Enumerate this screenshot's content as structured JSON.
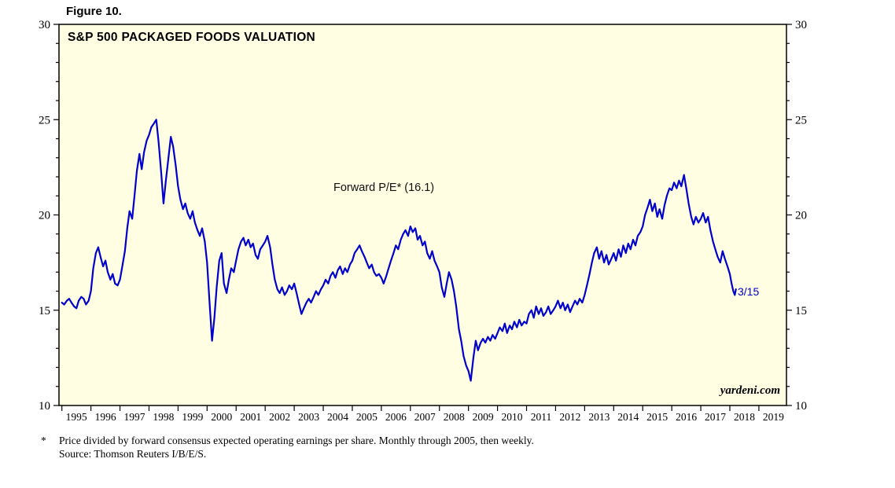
{
  "figure_label": "Figure 10.",
  "chart_data": {
    "type": "line",
    "title": "S&P 500 PACKAGED FOODS VALUATION",
    "series_label": "Forward P/E* (16.1)",
    "end_point_label": "3/15",
    "watermark": "yardeni.com",
    "xlabel": "",
    "ylabel": "",
    "ylim": [
      10,
      30
    ],
    "y_major_ticks": [
      10,
      15,
      20,
      25,
      30
    ],
    "y_minor_step": 1,
    "xlim": [
      1994.9,
      2019.95
    ],
    "x_years": [
      1995,
      1996,
      1997,
      1998,
      1999,
      2000,
      2001,
      2002,
      2003,
      2004,
      2005,
      2006,
      2007,
      2008,
      2009,
      2010,
      2011,
      2012,
      2013,
      2014,
      2015,
      2016,
      2017,
      2018,
      2019
    ],
    "line_color": "#0000CC",
    "plot_background": "#FFFDE2",
    "frame_color": "#000000",
    "legend_position": "none",
    "grid": false,
    "series": [
      {
        "name": "Forward P/E",
        "points": [
          [
            1995.0,
            15.4
          ],
          [
            1995.08,
            15.3
          ],
          [
            1995.17,
            15.5
          ],
          [
            1995.25,
            15.6
          ],
          [
            1995.33,
            15.4
          ],
          [
            1995.42,
            15.2
          ],
          [
            1995.5,
            15.1
          ],
          [
            1995.58,
            15.5
          ],
          [
            1995.67,
            15.7
          ],
          [
            1995.75,
            15.6
          ],
          [
            1995.83,
            15.3
          ],
          [
            1995.92,
            15.5
          ],
          [
            1996.0,
            16.0
          ],
          [
            1996.08,
            17.2
          ],
          [
            1996.17,
            18.0
          ],
          [
            1996.25,
            18.3
          ],
          [
            1996.33,
            17.8
          ],
          [
            1996.42,
            17.3
          ],
          [
            1996.5,
            17.6
          ],
          [
            1996.58,
            17.0
          ],
          [
            1996.67,
            16.6
          ],
          [
            1996.75,
            16.9
          ],
          [
            1996.83,
            16.4
          ],
          [
            1996.92,
            16.3
          ],
          [
            1997.0,
            16.6
          ],
          [
            1997.08,
            17.3
          ],
          [
            1997.17,
            18.1
          ],
          [
            1997.25,
            19.3
          ],
          [
            1997.33,
            20.2
          ],
          [
            1997.42,
            19.8
          ],
          [
            1997.5,
            21.0
          ],
          [
            1997.58,
            22.3
          ],
          [
            1997.67,
            23.2
          ],
          [
            1997.75,
            22.4
          ],
          [
            1997.83,
            23.3
          ],
          [
            1997.92,
            23.9
          ],
          [
            1998.0,
            24.2
          ],
          [
            1998.08,
            24.6
          ],
          [
            1998.17,
            24.8
          ],
          [
            1998.25,
            25.0
          ],
          [
            1998.33,
            23.8
          ],
          [
            1998.42,
            22.2
          ],
          [
            1998.5,
            20.6
          ],
          [
            1998.58,
            21.8
          ],
          [
            1998.67,
            23.0
          ],
          [
            1998.75,
            24.1
          ],
          [
            1998.83,
            23.6
          ],
          [
            1998.92,
            22.6
          ],
          [
            1999.0,
            21.5
          ],
          [
            1999.08,
            20.8
          ],
          [
            1999.17,
            20.3
          ],
          [
            1999.25,
            20.6
          ],
          [
            1999.33,
            20.1
          ],
          [
            1999.42,
            19.8
          ],
          [
            1999.5,
            20.2
          ],
          [
            1999.58,
            19.6
          ],
          [
            1999.67,
            19.2
          ],
          [
            1999.75,
            18.9
          ],
          [
            1999.83,
            19.3
          ],
          [
            1999.92,
            18.6
          ],
          [
            2000.0,
            17.5
          ],
          [
            2000.08,
            15.5
          ],
          [
            2000.17,
            13.4
          ],
          [
            2000.25,
            14.6
          ],
          [
            2000.33,
            16.2
          ],
          [
            2000.42,
            17.6
          ],
          [
            2000.5,
            18.0
          ],
          [
            2000.58,
            16.4
          ],
          [
            2000.67,
            15.9
          ],
          [
            2000.75,
            16.6
          ],
          [
            2000.83,
            17.2
          ],
          [
            2000.92,
            17.0
          ],
          [
            2001.0,
            17.6
          ],
          [
            2001.08,
            18.2
          ],
          [
            2001.17,
            18.6
          ],
          [
            2001.25,
            18.8
          ],
          [
            2001.33,
            18.4
          ],
          [
            2001.42,
            18.7
          ],
          [
            2001.5,
            18.3
          ],
          [
            2001.58,
            18.5
          ],
          [
            2001.67,
            17.9
          ],
          [
            2001.75,
            17.7
          ],
          [
            2001.83,
            18.2
          ],
          [
            2001.92,
            18.4
          ],
          [
            2002.0,
            18.6
          ],
          [
            2002.08,
            18.9
          ],
          [
            2002.17,
            18.3
          ],
          [
            2002.25,
            17.4
          ],
          [
            2002.33,
            16.6
          ],
          [
            2002.42,
            16.1
          ],
          [
            2002.5,
            15.9
          ],
          [
            2002.58,
            16.2
          ],
          [
            2002.67,
            15.8
          ],
          [
            2002.75,
            16.0
          ],
          [
            2002.83,
            16.3
          ],
          [
            2002.92,
            16.1
          ],
          [
            2003.0,
            16.4
          ],
          [
            2003.08,
            15.9
          ],
          [
            2003.17,
            15.3
          ],
          [
            2003.25,
            14.8
          ],
          [
            2003.33,
            15.1
          ],
          [
            2003.42,
            15.4
          ],
          [
            2003.5,
            15.6
          ],
          [
            2003.58,
            15.4
          ],
          [
            2003.67,
            15.7
          ],
          [
            2003.75,
            16.0
          ],
          [
            2003.83,
            15.8
          ],
          [
            2003.92,
            16.1
          ],
          [
            2004.0,
            16.3
          ],
          [
            2004.08,
            16.6
          ],
          [
            2004.17,
            16.4
          ],
          [
            2004.25,
            16.8
          ],
          [
            2004.33,
            17.0
          ],
          [
            2004.42,
            16.7
          ],
          [
            2004.5,
            17.1
          ],
          [
            2004.58,
            17.3
          ],
          [
            2004.67,
            16.9
          ],
          [
            2004.75,
            17.2
          ],
          [
            2004.83,
            17.0
          ],
          [
            2004.92,
            17.4
          ],
          [
            2005.0,
            17.6
          ],
          [
            2005.08,
            18.0
          ],
          [
            2005.17,
            18.2
          ],
          [
            2005.25,
            18.4
          ],
          [
            2005.33,
            18.1
          ],
          [
            2005.42,
            17.8
          ],
          [
            2005.5,
            17.5
          ],
          [
            2005.58,
            17.2
          ],
          [
            2005.67,
            17.4
          ],
          [
            2005.75,
            17.0
          ],
          [
            2005.83,
            16.8
          ],
          [
            2005.92,
            16.9
          ],
          [
            2006.0,
            16.7
          ],
          [
            2006.08,
            16.4
          ],
          [
            2006.17,
            16.8
          ],
          [
            2006.25,
            17.2
          ],
          [
            2006.33,
            17.6
          ],
          [
            2006.42,
            18.0
          ],
          [
            2006.5,
            18.4
          ],
          [
            2006.58,
            18.2
          ],
          [
            2006.67,
            18.7
          ],
          [
            2006.75,
            19.0
          ],
          [
            2006.83,
            19.2
          ],
          [
            2006.92,
            18.9
          ],
          [
            2007.0,
            19.4
          ],
          [
            2007.08,
            19.1
          ],
          [
            2007.17,
            19.3
          ],
          [
            2007.25,
            18.7
          ],
          [
            2007.33,
            18.9
          ],
          [
            2007.42,
            18.4
          ],
          [
            2007.5,
            18.6
          ],
          [
            2007.58,
            18.0
          ],
          [
            2007.67,
            17.7
          ],
          [
            2007.75,
            18.1
          ],
          [
            2007.83,
            17.6
          ],
          [
            2007.92,
            17.3
          ],
          [
            2008.0,
            17.0
          ],
          [
            2008.08,
            16.2
          ],
          [
            2008.17,
            15.7
          ],
          [
            2008.25,
            16.4
          ],
          [
            2008.33,
            17.0
          ],
          [
            2008.42,
            16.6
          ],
          [
            2008.5,
            16.0
          ],
          [
            2008.58,
            15.2
          ],
          [
            2008.67,
            14.0
          ],
          [
            2008.75,
            13.4
          ],
          [
            2008.83,
            12.6
          ],
          [
            2008.92,
            12.1
          ],
          [
            2009.0,
            11.8
          ],
          [
            2009.08,
            11.3
          ],
          [
            2009.17,
            12.5
          ],
          [
            2009.25,
            13.4
          ],
          [
            2009.33,
            12.9
          ],
          [
            2009.42,
            13.3
          ],
          [
            2009.5,
            13.5
          ],
          [
            2009.58,
            13.3
          ],
          [
            2009.67,
            13.6
          ],
          [
            2009.75,
            13.4
          ],
          [
            2009.83,
            13.7
          ],
          [
            2009.92,
            13.5
          ],
          [
            2010.0,
            13.8
          ],
          [
            2010.08,
            14.1
          ],
          [
            2010.17,
            13.9
          ],
          [
            2010.25,
            14.3
          ],
          [
            2010.33,
            13.8
          ],
          [
            2010.42,
            14.2
          ],
          [
            2010.5,
            14.0
          ],
          [
            2010.58,
            14.4
          ],
          [
            2010.67,
            14.1
          ],
          [
            2010.75,
            14.5
          ],
          [
            2010.83,
            14.2
          ],
          [
            2010.92,
            14.4
          ],
          [
            2011.0,
            14.3
          ],
          [
            2011.08,
            14.8
          ],
          [
            2011.17,
            15.0
          ],
          [
            2011.25,
            14.6
          ],
          [
            2011.33,
            15.2
          ],
          [
            2011.42,
            14.8
          ],
          [
            2011.5,
            15.1
          ],
          [
            2011.58,
            14.7
          ],
          [
            2011.67,
            14.9
          ],
          [
            2011.75,
            15.2
          ],
          [
            2011.83,
            14.8
          ],
          [
            2011.92,
            15.0
          ],
          [
            2012.0,
            15.2
          ],
          [
            2012.08,
            15.5
          ],
          [
            2012.17,
            15.1
          ],
          [
            2012.25,
            15.4
          ],
          [
            2012.33,
            15.0
          ],
          [
            2012.42,
            15.3
          ],
          [
            2012.5,
            14.9
          ],
          [
            2012.58,
            15.2
          ],
          [
            2012.67,
            15.5
          ],
          [
            2012.75,
            15.3
          ],
          [
            2012.83,
            15.6
          ],
          [
            2012.92,
            15.4
          ],
          [
            2013.0,
            15.8
          ],
          [
            2013.08,
            16.3
          ],
          [
            2013.17,
            16.9
          ],
          [
            2013.25,
            17.5
          ],
          [
            2013.33,
            18.0
          ],
          [
            2013.42,
            18.3
          ],
          [
            2013.5,
            17.7
          ],
          [
            2013.58,
            18.1
          ],
          [
            2013.67,
            17.5
          ],
          [
            2013.75,
            17.9
          ],
          [
            2013.83,
            17.4
          ],
          [
            2013.92,
            17.7
          ],
          [
            2014.0,
            18.0
          ],
          [
            2014.08,
            17.6
          ],
          [
            2014.17,
            18.2
          ],
          [
            2014.25,
            17.8
          ],
          [
            2014.33,
            18.4
          ],
          [
            2014.42,
            18.0
          ],
          [
            2014.5,
            18.5
          ],
          [
            2014.58,
            18.2
          ],
          [
            2014.67,
            18.7
          ],
          [
            2014.75,
            18.4
          ],
          [
            2014.83,
            18.9
          ],
          [
            2014.92,
            19.1
          ],
          [
            2015.0,
            19.4
          ],
          [
            2015.08,
            20.0
          ],
          [
            2015.17,
            20.4
          ],
          [
            2015.25,
            20.8
          ],
          [
            2015.33,
            20.2
          ],
          [
            2015.42,
            20.6
          ],
          [
            2015.5,
            19.9
          ],
          [
            2015.58,
            20.3
          ],
          [
            2015.67,
            19.8
          ],
          [
            2015.75,
            20.5
          ],
          [
            2015.83,
            21.0
          ],
          [
            2015.92,
            21.4
          ],
          [
            2016.0,
            21.3
          ],
          [
            2016.08,
            21.7
          ],
          [
            2016.17,
            21.4
          ],
          [
            2016.25,
            21.8
          ],
          [
            2016.33,
            21.5
          ],
          [
            2016.42,
            22.1
          ],
          [
            2016.5,
            21.4
          ],
          [
            2016.58,
            20.6
          ],
          [
            2016.67,
            19.9
          ],
          [
            2016.75,
            19.5
          ],
          [
            2016.83,
            19.9
          ],
          [
            2016.92,
            19.6
          ],
          [
            2017.0,
            19.8
          ],
          [
            2017.08,
            20.1
          ],
          [
            2017.17,
            19.6
          ],
          [
            2017.25,
            19.9
          ],
          [
            2017.33,
            19.2
          ],
          [
            2017.42,
            18.6
          ],
          [
            2017.5,
            18.2
          ],
          [
            2017.58,
            17.8
          ],
          [
            2017.67,
            17.5
          ],
          [
            2017.75,
            18.1
          ],
          [
            2017.83,
            17.7
          ],
          [
            2017.92,
            17.3
          ],
          [
            2018.0,
            16.9
          ],
          [
            2018.06,
            16.4
          ],
          [
            2018.12,
            16.0
          ],
          [
            2018.17,
            15.8
          ],
          [
            2018.21,
            16.1
          ]
        ]
      }
    ]
  },
  "footnote": {
    "marker": "*",
    "line1": "Price divided by forward consensus expected operating earnings per share. Monthly through 2005, then weekly.",
    "line2": "Source: Thomson Reuters I/B/E/S."
  }
}
